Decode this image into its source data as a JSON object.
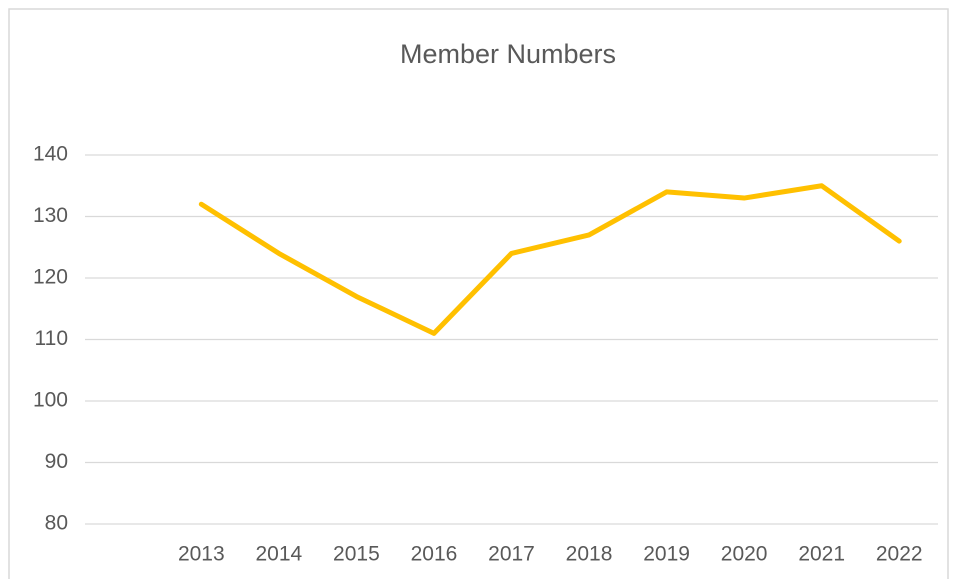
{
  "chart_data": {
    "type": "line",
    "title": "Member Numbers",
    "categories": [
      null,
      "2013",
      "2014",
      "2015",
      "2016",
      "2017",
      "2018",
      "2019",
      "2020",
      "2021",
      "2022"
    ],
    "series": [
      {
        "name": "Member Numbers",
        "color": "#ffc000",
        "values": [
          null,
          132,
          124,
          117,
          111,
          124,
          127,
          134,
          133,
          135,
          126
        ]
      }
    ],
    "ylim": [
      80,
      140
    ],
    "yticks": [
      80,
      90,
      100,
      110,
      120,
      130,
      140
    ],
    "grid": true
  }
}
